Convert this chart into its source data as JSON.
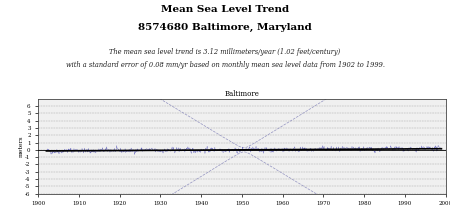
{
  "title_line1": "Mean Sea Level Trend",
  "title_line2": "8574680 Baltimore, Maryland",
  "subtitle_line1": "The mean sea level trend is 3.12 millimeters/year (1.02 feet/century)",
  "subtitle_line2": "with a standard error of 0.08 mm/yr based on monthly mean sea level data from 1902 to 1999.",
  "plot_title": "Baltimore",
  "ylabel": "meters",
  "xlim": [
    1900,
    2000
  ],
  "ylim": [
    -6,
    7
  ],
  "yticks": [
    -6,
    -5,
    -4,
    -3,
    -2,
    -1,
    0,
    1,
    2,
    3,
    4,
    5,
    6
  ],
  "xticks": [
    1900,
    1910,
    1920,
    1930,
    1940,
    1950,
    1960,
    1970,
    1980,
    1990,
    2000
  ],
  "trend_start_year": 1902,
  "trend_end_year": 1999,
  "trend_mm_per_year": 3.12,
  "background_color": "#ffffff",
  "plot_bg_color": "#f0f0f0",
  "line_color": "#3333aa",
  "trend_color": "#000000",
  "ci_color": "#8888bb",
  "grid_color": "#999999",
  "title_fontsize": 7.5,
  "subtitle_fontsize": 4.8,
  "plot_title_fontsize": 5.0,
  "tick_fontsize": 4.0,
  "ylabel_fontsize": 4.5
}
